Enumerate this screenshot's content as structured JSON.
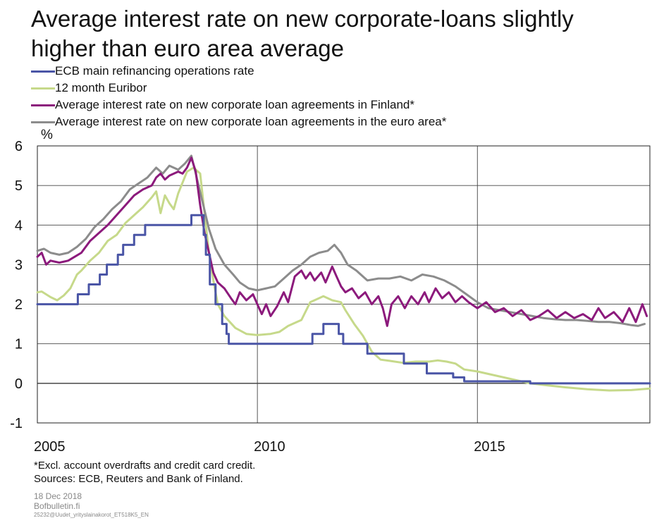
{
  "title": {
    "line1": "Average interest rate on new corporate-loans slightly",
    "line2": "higher than euro area average"
  },
  "legend": [
    {
      "label": "ECB main refinancing operations rate",
      "color": "#4a55a6"
    },
    {
      "label": "12 month Euribor",
      "color": "#c6d98a"
    },
    {
      "label": "Average interest rate on new corporate loan agreements in Finland*",
      "color": "#8c1a7c"
    },
    {
      "label": "Average interest rate on new corporate loan agreements in the euro area*",
      "color": "#8c8c8c"
    }
  ],
  "unit": "%",
  "notes": {
    "line1": "*Excl. account overdrafts and credit card credit.",
    "line2": "Sources: ECB, Reuters and Bank of Finland."
  },
  "meta": {
    "date": "18 Dec 2018",
    "site": "Bofbulletin.fi",
    "code": "25232@Uudet_yrityslainakorot_ET518K5_EN"
  },
  "chart_data": {
    "type": "line",
    "ylim": [
      -1,
      6
    ],
    "xlim": [
      2005.0,
      2018.92
    ],
    "yticks": [
      "6",
      "5",
      "4",
      "3",
      "2",
      "1",
      "0",
      "-1"
    ],
    "xticks": [
      "2005",
      "2010",
      "2015"
    ],
    "grid": true,
    "series": [
      {
        "name": "ECB main refinancing operations rate",
        "color": "#4a55a6",
        "step": true,
        "points": [
          [
            2005.0,
            2.0
          ],
          [
            2005.92,
            2.25
          ],
          [
            2006.17,
            2.5
          ],
          [
            2006.42,
            2.75
          ],
          [
            2006.58,
            3.0
          ],
          [
            2006.83,
            3.25
          ],
          [
            2006.95,
            3.5
          ],
          [
            2007.2,
            3.75
          ],
          [
            2007.45,
            4.0
          ],
          [
            2008.5,
            4.25
          ],
          [
            2008.78,
            3.75
          ],
          [
            2008.83,
            3.25
          ],
          [
            2008.92,
            2.5
          ],
          [
            2009.05,
            2.0
          ],
          [
            2009.2,
            1.5
          ],
          [
            2009.3,
            1.25
          ],
          [
            2009.35,
            1.0
          ],
          [
            2011.25,
            1.25
          ],
          [
            2011.5,
            1.5
          ],
          [
            2011.85,
            1.25
          ],
          [
            2011.95,
            1.0
          ],
          [
            2012.5,
            0.75
          ],
          [
            2013.33,
            0.5
          ],
          [
            2013.85,
            0.25
          ],
          [
            2014.45,
            0.15
          ],
          [
            2014.7,
            0.05
          ],
          [
            2016.2,
            0.0
          ],
          [
            2018.92,
            0.0
          ]
        ]
      },
      {
        "name": "12 month Euribor",
        "color": "#c6d98a",
        "points": [
          [
            2005.0,
            2.3
          ],
          [
            2005.1,
            2.32
          ],
          [
            2005.3,
            2.18
          ],
          [
            2005.45,
            2.1
          ],
          [
            2005.6,
            2.22
          ],
          [
            2005.75,
            2.4
          ],
          [
            2005.9,
            2.75
          ],
          [
            2006.0,
            2.85
          ],
          [
            2006.2,
            3.1
          ],
          [
            2006.4,
            3.3
          ],
          [
            2006.6,
            3.6
          ],
          [
            2006.8,
            3.75
          ],
          [
            2007.0,
            4.05
          ],
          [
            2007.2,
            4.25
          ],
          [
            2007.4,
            4.45
          ],
          [
            2007.6,
            4.7
          ],
          [
            2007.7,
            4.85
          ],
          [
            2007.8,
            4.3
          ],
          [
            2007.9,
            4.75
          ],
          [
            2008.0,
            4.55
          ],
          [
            2008.1,
            4.4
          ],
          [
            2008.2,
            4.8
          ],
          [
            2008.4,
            5.35
          ],
          [
            2008.55,
            5.45
          ],
          [
            2008.7,
            5.3
          ],
          [
            2008.8,
            4.3
          ],
          [
            2008.9,
            3.3
          ],
          [
            2009.0,
            2.6
          ],
          [
            2009.1,
            2.0
          ],
          [
            2009.25,
            1.7
          ],
          [
            2009.5,
            1.4
          ],
          [
            2009.75,
            1.25
          ],
          [
            2010.0,
            1.22
          ],
          [
            2010.3,
            1.25
          ],
          [
            2010.5,
            1.3
          ],
          [
            2010.7,
            1.45
          ],
          [
            2010.9,
            1.55
          ],
          [
            2011.0,
            1.6
          ],
          [
            2011.2,
            2.05
          ],
          [
            2011.4,
            2.15
          ],
          [
            2011.5,
            2.2
          ],
          [
            2011.7,
            2.1
          ],
          [
            2011.9,
            2.05
          ],
          [
            2012.0,
            1.85
          ],
          [
            2012.2,
            1.5
          ],
          [
            2012.4,
            1.2
          ],
          [
            2012.6,
            0.8
          ],
          [
            2012.8,
            0.6
          ],
          [
            2013.0,
            0.57
          ],
          [
            2013.3,
            0.52
          ],
          [
            2013.6,
            0.55
          ],
          [
            2013.9,
            0.55
          ],
          [
            2014.1,
            0.58
          ],
          [
            2014.3,
            0.55
          ],
          [
            2014.5,
            0.5
          ],
          [
            2014.7,
            0.35
          ],
          [
            2015.0,
            0.3
          ],
          [
            2015.4,
            0.2
          ],
          [
            2015.8,
            0.1
          ],
          [
            2016.2,
            0.0
          ],
          [
            2016.6,
            -0.05
          ],
          [
            2017.0,
            -0.1
          ],
          [
            2017.5,
            -0.15
          ],
          [
            2018.0,
            -0.18
          ],
          [
            2018.5,
            -0.17
          ],
          [
            2018.92,
            -0.13
          ]
        ]
      },
      {
        "name": "Average interest rate on new corporate loan agreements in Finland*",
        "color": "#8c1a7c",
        "points": [
          [
            2005.0,
            3.2
          ],
          [
            2005.1,
            3.3
          ],
          [
            2005.2,
            3.0
          ],
          [
            2005.3,
            3.1
          ],
          [
            2005.5,
            3.05
          ],
          [
            2005.7,
            3.1
          ],
          [
            2005.85,
            3.2
          ],
          [
            2006.0,
            3.3
          ],
          [
            2006.2,
            3.6
          ],
          [
            2006.4,
            3.8
          ],
          [
            2006.6,
            4.0
          ],
          [
            2006.8,
            4.25
          ],
          [
            2007.0,
            4.5
          ],
          [
            2007.2,
            4.75
          ],
          [
            2007.4,
            4.9
          ],
          [
            2007.6,
            5.0
          ],
          [
            2007.7,
            5.2
          ],
          [
            2007.8,
            5.3
          ],
          [
            2007.9,
            5.15
          ],
          [
            2008.0,
            5.25
          ],
          [
            2008.2,
            5.35
          ],
          [
            2008.3,
            5.3
          ],
          [
            2008.4,
            5.45
          ],
          [
            2008.5,
            5.7
          ],
          [
            2008.6,
            5.35
          ],
          [
            2008.7,
            4.5
          ],
          [
            2008.8,
            3.8
          ],
          [
            2008.9,
            3.3
          ],
          [
            2009.0,
            2.8
          ],
          [
            2009.1,
            2.55
          ],
          [
            2009.25,
            2.4
          ],
          [
            2009.4,
            2.15
          ],
          [
            2009.5,
            2.0
          ],
          [
            2009.6,
            2.3
          ],
          [
            2009.75,
            2.1
          ],
          [
            2009.9,
            2.25
          ],
          [
            2010.0,
            2.0
          ],
          [
            2010.1,
            1.75
          ],
          [
            2010.2,
            2.0
          ],
          [
            2010.3,
            1.7
          ],
          [
            2010.45,
            1.95
          ],
          [
            2010.6,
            2.3
          ],
          [
            2010.7,
            2.05
          ],
          [
            2010.85,
            2.7
          ],
          [
            2011.0,
            2.85
          ],
          [
            2011.1,
            2.65
          ],
          [
            2011.2,
            2.8
          ],
          [
            2011.3,
            2.6
          ],
          [
            2011.45,
            2.8
          ],
          [
            2011.55,
            2.55
          ],
          [
            2011.7,
            2.95
          ],
          [
            2011.8,
            2.7
          ],
          [
            2011.9,
            2.45
          ],
          [
            2012.0,
            2.3
          ],
          [
            2012.15,
            2.4
          ],
          [
            2012.3,
            2.15
          ],
          [
            2012.45,
            2.3
          ],
          [
            2012.6,
            2.0
          ],
          [
            2012.75,
            2.2
          ],
          [
            2012.85,
            1.9
          ],
          [
            2012.95,
            1.45
          ],
          [
            2013.05,
            2.0
          ],
          [
            2013.2,
            2.2
          ],
          [
            2013.35,
            1.9
          ],
          [
            2013.5,
            2.2
          ],
          [
            2013.65,
            2.0
          ],
          [
            2013.8,
            2.3
          ],
          [
            2013.9,
            2.05
          ],
          [
            2014.05,
            2.4
          ],
          [
            2014.2,
            2.15
          ],
          [
            2014.35,
            2.3
          ],
          [
            2014.5,
            2.05
          ],
          [
            2014.65,
            2.2
          ],
          [
            2014.8,
            2.05
          ],
          [
            2015.0,
            1.9
          ],
          [
            2015.2,
            2.05
          ],
          [
            2015.4,
            1.8
          ],
          [
            2015.6,
            1.9
          ],
          [
            2015.8,
            1.7
          ],
          [
            2016.0,
            1.85
          ],
          [
            2016.2,
            1.6
          ],
          [
            2016.4,
            1.7
          ],
          [
            2016.6,
            1.85
          ],
          [
            2016.8,
            1.65
          ],
          [
            2017.0,
            1.8
          ],
          [
            2017.2,
            1.65
          ],
          [
            2017.4,
            1.75
          ],
          [
            2017.6,
            1.6
          ],
          [
            2017.75,
            1.9
          ],
          [
            2017.9,
            1.65
          ],
          [
            2018.1,
            1.8
          ],
          [
            2018.3,
            1.55
          ],
          [
            2018.45,
            1.9
          ],
          [
            2018.6,
            1.55
          ],
          [
            2018.75,
            2.0
          ],
          [
            2018.85,
            1.7
          ]
        ]
      },
      {
        "name": "Average interest rate on new corporate loan agreements in the euro area*",
        "color": "#8c8c8c",
        "points": [
          [
            2005.0,
            3.35
          ],
          [
            2005.15,
            3.4
          ],
          [
            2005.3,
            3.3
          ],
          [
            2005.5,
            3.25
          ],
          [
            2005.7,
            3.3
          ],
          [
            2005.9,
            3.45
          ],
          [
            2006.1,
            3.65
          ],
          [
            2006.3,
            3.95
          ],
          [
            2006.5,
            4.15
          ],
          [
            2006.7,
            4.4
          ],
          [
            2006.9,
            4.6
          ],
          [
            2007.1,
            4.9
          ],
          [
            2007.3,
            5.05
          ],
          [
            2007.5,
            5.2
          ],
          [
            2007.7,
            5.45
          ],
          [
            2007.85,
            5.3
          ],
          [
            2008.0,
            5.5
          ],
          [
            2008.2,
            5.4
          ],
          [
            2008.35,
            5.55
          ],
          [
            2008.5,
            5.75
          ],
          [
            2008.6,
            5.3
          ],
          [
            2008.75,
            4.6
          ],
          [
            2008.9,
            3.9
          ],
          [
            2009.05,
            3.4
          ],
          [
            2009.25,
            3.0
          ],
          [
            2009.45,
            2.75
          ],
          [
            2009.6,
            2.55
          ],
          [
            2009.8,
            2.4
          ],
          [
            2010.0,
            2.35
          ],
          [
            2010.2,
            2.4
          ],
          [
            2010.4,
            2.45
          ],
          [
            2010.6,
            2.65
          ],
          [
            2010.8,
            2.85
          ],
          [
            2011.0,
            3.0
          ],
          [
            2011.2,
            3.2
          ],
          [
            2011.4,
            3.3
          ],
          [
            2011.6,
            3.35
          ],
          [
            2011.75,
            3.5
          ],
          [
            2011.9,
            3.3
          ],
          [
            2012.05,
            3.0
          ],
          [
            2012.25,
            2.85
          ],
          [
            2012.5,
            2.6
          ],
          [
            2012.75,
            2.65
          ],
          [
            2013.0,
            2.65
          ],
          [
            2013.25,
            2.7
          ],
          [
            2013.5,
            2.6
          ],
          [
            2013.75,
            2.75
          ],
          [
            2014.0,
            2.7
          ],
          [
            2014.25,
            2.6
          ],
          [
            2014.5,
            2.45
          ],
          [
            2014.75,
            2.25
          ],
          [
            2015.0,
            2.05
          ],
          [
            2015.25,
            1.9
          ],
          [
            2015.5,
            1.85
          ],
          [
            2015.75,
            1.8
          ],
          [
            2016.0,
            1.75
          ],
          [
            2016.25,
            1.7
          ],
          [
            2016.5,
            1.65
          ],
          [
            2016.75,
            1.62
          ],
          [
            2017.0,
            1.6
          ],
          [
            2017.25,
            1.6
          ],
          [
            2017.5,
            1.58
          ],
          [
            2017.75,
            1.55
          ],
          [
            2018.0,
            1.55
          ],
          [
            2018.25,
            1.52
          ],
          [
            2018.5,
            1.47
          ],
          [
            2018.65,
            1.45
          ],
          [
            2018.8,
            1.5
          ]
        ]
      }
    ]
  }
}
